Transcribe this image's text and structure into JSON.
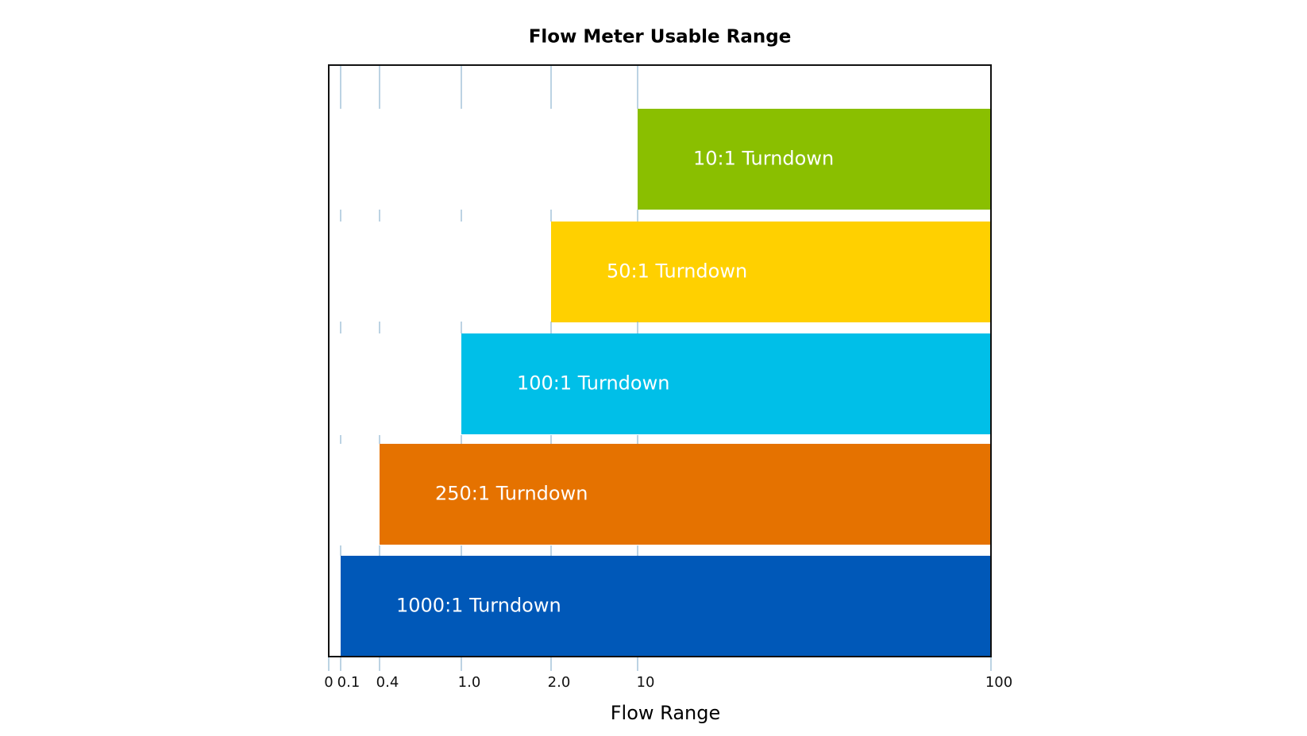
{
  "chart_data": {
    "type": "range-bar",
    "title": "Flow Meter Usable Range",
    "xlabel": "Flow Range",
    "xlim": [
      0,
      100
    ],
    "xticks": [
      0,
      0.1,
      0.4,
      {
        "value": 1,
        "label": "1.0"
      },
      {
        "value": 2,
        "label": "2.0"
      },
      10,
      100
    ],
    "grid": true,
    "bars": [
      {
        "label": "10:1 Turndown",
        "start": 10,
        "end": 100,
        "color": "#8abf00"
      },
      {
        "label": "50:1 Turndown",
        "start": 2,
        "end": 100,
        "color": "#ffd000"
      },
      {
        "label": "100:1 Turndown",
        "start": 1,
        "end": 100,
        "color": "#00bfe8"
      },
      {
        "label": "250:1 Turndown",
        "start": 0.4,
        "end": 100,
        "color": "#e57200"
      },
      {
        "label": "1000:1 Turndown",
        "start": 0.1,
        "end": 100,
        "color": "#0058b8"
      }
    ]
  }
}
